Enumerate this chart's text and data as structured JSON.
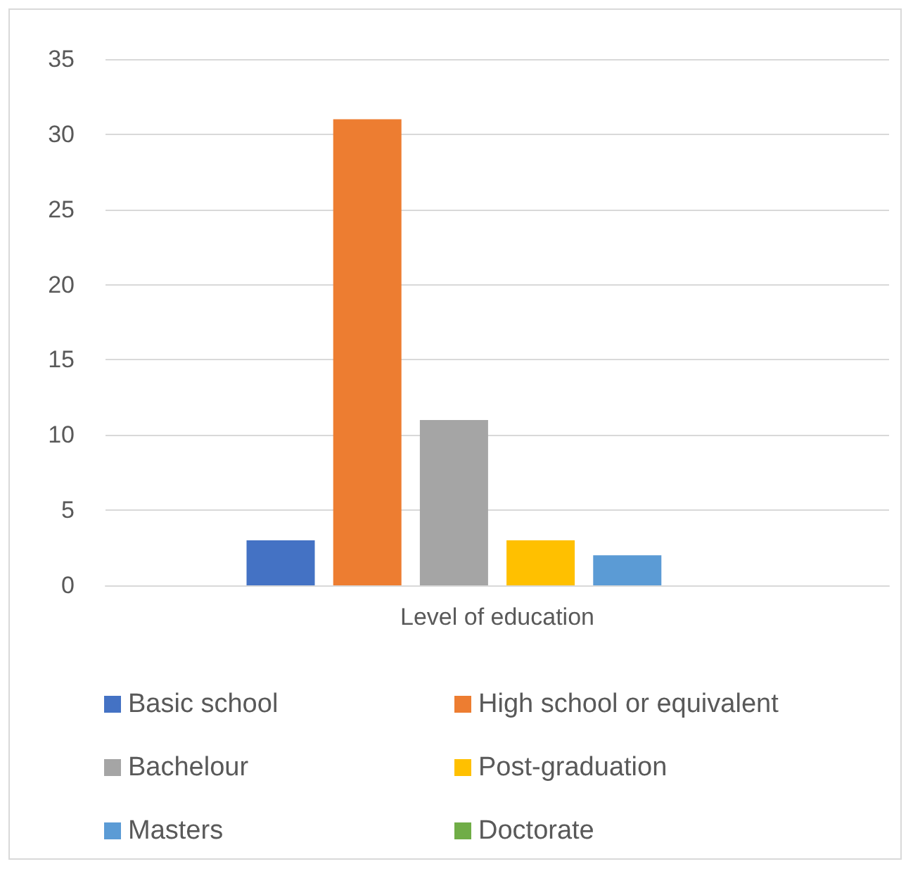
{
  "chart_data": {
    "type": "bar",
    "categories": [
      "Level of education"
    ],
    "series": [
      {
        "name": "Basic school",
        "color": "#4472c4",
        "values": [
          3
        ]
      },
      {
        "name": "High school or equivalent",
        "color": "#ed7d31",
        "values": [
          31
        ]
      },
      {
        "name": "Bachelour",
        "color": "#a5a5a5",
        "values": [
          11
        ]
      },
      {
        "name": "Post-graduation",
        "color": "#ffc000",
        "values": [
          3
        ]
      },
      {
        "name": "Masters",
        "color": "#5b9bd5",
        "values": [
          2
        ]
      },
      {
        "name": "Doctorate",
        "color": "#70ad47",
        "values": [
          0
        ]
      }
    ],
    "ylim": [
      0,
      35
    ],
    "yticks": [
      0,
      5,
      10,
      15,
      20,
      25,
      30,
      35
    ],
    "grid": "y",
    "legend": "bottom"
  }
}
